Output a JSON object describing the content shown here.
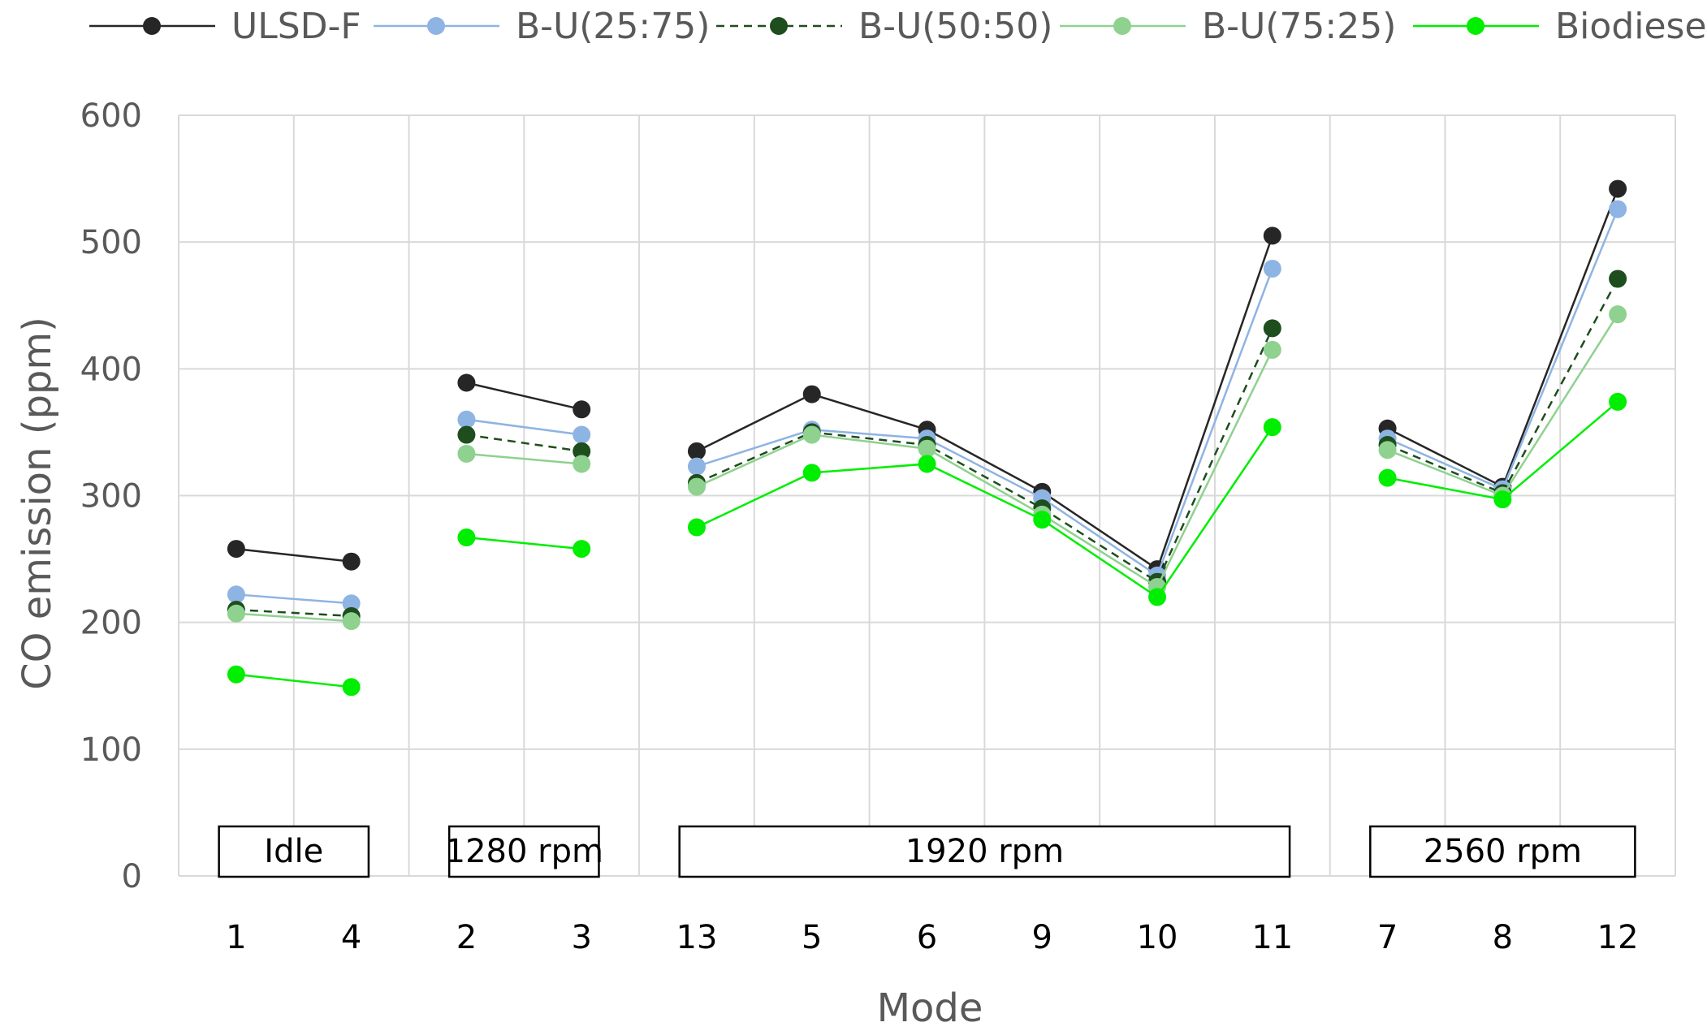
{
  "chart_data": {
    "type": "line",
    "title": "",
    "xlabel": "Mode",
    "ylabel": "CO emission (ppm)",
    "ylim": [
      0,
      600
    ],
    "yticks": [
      0,
      100,
      200,
      300,
      400,
      500,
      600
    ],
    "grid": true,
    "legend_position": "top",
    "categories": [
      "1",
      "4",
      "2",
      "3",
      "13",
      "5",
      "6",
      "9",
      "10",
      "11",
      "7",
      "8",
      "12"
    ],
    "segments": [
      [
        0,
        1
      ],
      [
        2,
        3
      ],
      [
        4,
        9
      ],
      [
        10,
        12
      ]
    ],
    "groups": [
      {
        "label": "Idle",
        "from": 0,
        "to": 1
      },
      {
        "label": "1280 rpm",
        "from": 2,
        "to": 3
      },
      {
        "label": "1920 rpm",
        "from": 4,
        "to": 9
      },
      {
        "label": "2560 rpm",
        "from": 10,
        "to": 12
      }
    ],
    "series": [
      {
        "name": "ULSD-F",
        "color": "#262626",
        "dashed": false,
        "values": [
          258,
          248,
          389,
          368,
          335,
          380,
          352,
          303,
          242,
          505,
          353,
          307,
          542
        ]
      },
      {
        "name": "B-U(25:75)",
        "color": "#8eb4e3",
        "dashed": false,
        "values": [
          222,
          215,
          360,
          348,
          323,
          352,
          345,
          298,
          237,
          479,
          345,
          305,
          526
        ]
      },
      {
        "name": "B-U(50:50)",
        "color": "#1e4d1e",
        "dashed": true,
        "values": [
          210,
          205,
          348,
          335,
          310,
          350,
          340,
          290,
          232,
          432,
          340,
          302,
          471
        ]
      },
      {
        "name": "B-U(75:25)",
        "color": "#8fd18f",
        "dashed": false,
        "values": [
          207,
          201,
          333,
          325,
          307,
          348,
          337,
          285,
          228,
          415,
          336,
          300,
          443
        ]
      },
      {
        "name": "Biodiesel",
        "color": "#00ee00",
        "dashed": false,
        "values": [
          159,
          149,
          267,
          258,
          275,
          318,
          325,
          281,
          220,
          354,
          314,
          297,
          374
        ]
      }
    ]
  }
}
